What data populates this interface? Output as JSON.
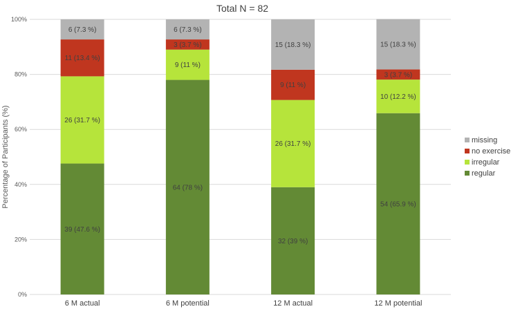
{
  "chart_data": {
    "type": "bar",
    "stacked": true,
    "title": "Total N = 82",
    "xlabel": "",
    "ylabel": "Percentage of Participants (%)",
    "ylim": [
      0,
      100
    ],
    "yticks": [
      "0%",
      "20%",
      "40%",
      "60%",
      "80%",
      "100%"
    ],
    "categories": [
      "6 M actual",
      "6 M potential",
      "12 M actual",
      "12 M potential"
    ],
    "series": [
      {
        "name": "regular",
        "color": "#638a35",
        "values": [
          47.6,
          78.0,
          39.0,
          65.9
        ],
        "labels": [
          "39 (47.6 %)",
          "64 (78 %)",
          "32 (39 %)",
          "54 (65.9 %)"
        ]
      },
      {
        "name": "irregular",
        "color": "#b6e43b",
        "values": [
          31.7,
          11.0,
          31.7,
          12.2
        ],
        "labels": [
          "26 (31.7 %)",
          "9 (11 %)",
          "26 (31.7 %)",
          "10 (12.2 %)"
        ]
      },
      {
        "name": "no exercise",
        "color": "#c0361f",
        "values": [
          13.4,
          3.7,
          11.0,
          3.7
        ],
        "labels": [
          "11 (13.4 %)",
          "3 (3.7 %)",
          "9 (11 %)",
          "3 (3.7 %)"
        ]
      },
      {
        "name": "missing",
        "color": "#b3b3b3",
        "values": [
          7.3,
          7.3,
          18.3,
          18.3
        ],
        "labels": [
          "6 (7.3 %)",
          "6 (7.3 %)",
          "15 (18.3 %)",
          "15 (18.3 %)"
        ]
      }
    ],
    "legend": {
      "position": "right",
      "order": [
        "missing",
        "no exercise",
        "irregular",
        "regular"
      ]
    },
    "grid": true,
    "gridColor": "#d9d9d9"
  }
}
